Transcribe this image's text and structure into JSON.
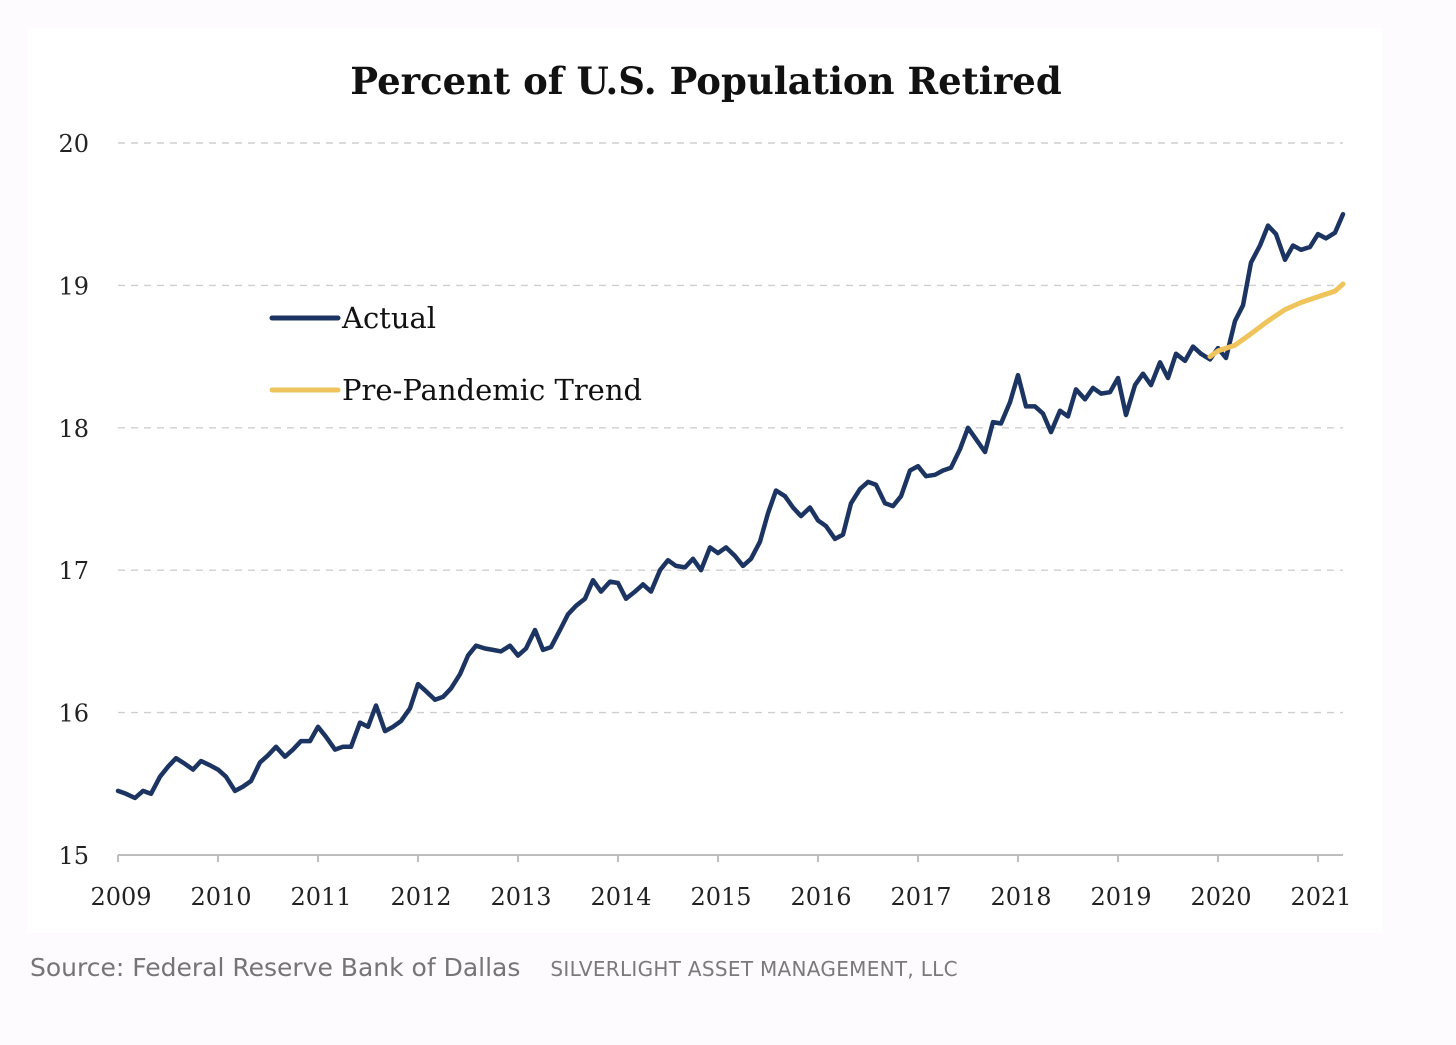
{
  "chart_data": {
    "type": "line",
    "title": "Percent of U.S. Population Retired",
    "xlabel": "",
    "ylabel": "",
    "xlim": [
      2009,
      2021.25
    ],
    "ylim": [
      15,
      20
    ],
    "yticks": [
      "15",
      "16",
      "17",
      "18",
      "19",
      "20"
    ],
    "xticks": [
      "2009",
      "2010",
      "2011",
      "2012",
      "2013",
      "2014",
      "2015",
      "2016",
      "2017",
      "2018",
      "2019",
      "2020",
      "2021"
    ],
    "grid": "horizontal dashed",
    "legend_position": "upper-left",
    "series": [
      {
        "name": "Actual",
        "color": "#1c3461",
        "points": [
          [
            2009.0,
            15.45
          ],
          [
            2009.08,
            15.43
          ],
          [
            2009.17,
            15.4
          ],
          [
            2009.25,
            15.45
          ],
          [
            2009.33,
            15.43
          ],
          [
            2009.42,
            15.55
          ],
          [
            2009.5,
            15.62
          ],
          [
            2009.58,
            15.68
          ],
          [
            2009.67,
            15.64
          ],
          [
            2009.75,
            15.6
          ],
          [
            2009.83,
            15.66
          ],
          [
            2009.92,
            15.63
          ],
          [
            2010.0,
            15.6
          ],
          [
            2010.08,
            15.55
          ],
          [
            2010.17,
            15.45
          ],
          [
            2010.25,
            15.48
          ],
          [
            2010.33,
            15.52
          ],
          [
            2010.42,
            15.65
          ],
          [
            2010.5,
            15.7
          ],
          [
            2010.58,
            15.76
          ],
          [
            2010.67,
            15.69
          ],
          [
            2010.75,
            15.74
          ],
          [
            2010.83,
            15.8
          ],
          [
            2010.92,
            15.8
          ],
          [
            2011.0,
            15.9
          ],
          [
            2011.08,
            15.83
          ],
          [
            2011.17,
            15.74
          ],
          [
            2011.25,
            15.76
          ],
          [
            2011.33,
            15.76
          ],
          [
            2011.42,
            15.93
          ],
          [
            2011.5,
            15.9
          ],
          [
            2011.58,
            16.05
          ],
          [
            2011.67,
            15.87
          ],
          [
            2011.75,
            15.9
          ],
          [
            2011.83,
            15.94
          ],
          [
            2011.92,
            16.03
          ],
          [
            2012.0,
            16.2
          ],
          [
            2012.08,
            16.15
          ],
          [
            2012.17,
            16.09
          ],
          [
            2012.25,
            16.11
          ],
          [
            2012.33,
            16.17
          ],
          [
            2012.42,
            16.27
          ],
          [
            2012.5,
            16.4
          ],
          [
            2012.58,
            16.47
          ],
          [
            2012.67,
            16.45
          ],
          [
            2012.75,
            16.44
          ],
          [
            2012.83,
            16.43
          ],
          [
            2012.92,
            16.47
          ],
          [
            2013.0,
            16.4
          ],
          [
            2013.08,
            16.45
          ],
          [
            2013.17,
            16.58
          ],
          [
            2013.25,
            16.44
          ],
          [
            2013.33,
            16.46
          ],
          [
            2013.42,
            16.58
          ],
          [
            2013.5,
            16.69
          ],
          [
            2013.58,
            16.75
          ],
          [
            2013.67,
            16.8
          ],
          [
            2013.75,
            16.93
          ],
          [
            2013.83,
            16.85
          ],
          [
            2013.92,
            16.92
          ],
          [
            2014.0,
            16.91
          ],
          [
            2014.08,
            16.8
          ],
          [
            2014.17,
            16.85
          ],
          [
            2014.25,
            16.9
          ],
          [
            2014.33,
            16.85
          ],
          [
            2014.42,
            17.0
          ],
          [
            2014.5,
            17.07
          ],
          [
            2014.58,
            17.03
          ],
          [
            2014.67,
            17.02
          ],
          [
            2014.75,
            17.08
          ],
          [
            2014.83,
            17.0
          ],
          [
            2014.92,
            17.16
          ],
          [
            2015.0,
            17.12
          ],
          [
            2015.08,
            17.16
          ],
          [
            2015.17,
            17.1
          ],
          [
            2015.25,
            17.03
          ],
          [
            2015.33,
            17.08
          ],
          [
            2015.42,
            17.2
          ],
          [
            2015.5,
            17.4
          ],
          [
            2015.58,
            17.56
          ],
          [
            2015.67,
            17.52
          ],
          [
            2015.75,
            17.44
          ],
          [
            2015.83,
            17.38
          ],
          [
            2015.92,
            17.44
          ],
          [
            2016.0,
            17.35
          ],
          [
            2016.08,
            17.31
          ],
          [
            2016.17,
            17.22
          ],
          [
            2016.25,
            17.25
          ],
          [
            2016.33,
            17.47
          ],
          [
            2016.42,
            17.57
          ],
          [
            2016.5,
            17.62
          ],
          [
            2016.58,
            17.6
          ],
          [
            2016.67,
            17.47
          ],
          [
            2016.75,
            17.45
          ],
          [
            2016.83,
            17.52
          ],
          [
            2016.92,
            17.7
          ],
          [
            2017.0,
            17.73
          ],
          [
            2017.08,
            17.66
          ],
          [
            2017.17,
            17.67
          ],
          [
            2017.25,
            17.7
          ],
          [
            2017.33,
            17.72
          ],
          [
            2017.42,
            17.85
          ],
          [
            2017.5,
            18.0
          ],
          [
            2017.58,
            17.92
          ],
          [
            2017.67,
            17.83
          ],
          [
            2017.75,
            18.04
          ],
          [
            2017.83,
            18.03
          ],
          [
            2017.92,
            18.18
          ],
          [
            2018.0,
            18.37
          ],
          [
            2018.08,
            18.15
          ],
          [
            2018.17,
            18.15
          ],
          [
            2018.25,
            18.1
          ],
          [
            2018.33,
            17.97
          ],
          [
            2018.42,
            18.12
          ],
          [
            2018.5,
            18.08
          ],
          [
            2018.58,
            18.27
          ],
          [
            2018.67,
            18.2
          ],
          [
            2018.75,
            18.28
          ],
          [
            2018.83,
            18.24
          ],
          [
            2018.92,
            18.25
          ],
          [
            2019.0,
            18.35
          ],
          [
            2019.08,
            18.09
          ],
          [
            2019.17,
            18.3
          ],
          [
            2019.25,
            18.38
          ],
          [
            2019.33,
            18.3
          ],
          [
            2019.42,
            18.46
          ],
          [
            2019.5,
            18.35
          ],
          [
            2019.58,
            18.52
          ],
          [
            2019.67,
            18.47
          ],
          [
            2019.75,
            18.57
          ],
          [
            2019.83,
            18.52
          ],
          [
            2019.92,
            18.48
          ],
          [
            2020.0,
            18.56
          ],
          [
            2020.08,
            18.49
          ],
          [
            2020.17,
            18.75
          ],
          [
            2020.25,
            18.86
          ],
          [
            2020.33,
            19.16
          ],
          [
            2020.42,
            19.28
          ],
          [
            2020.5,
            19.42
          ],
          [
            2020.58,
            19.36
          ],
          [
            2020.67,
            19.18
          ],
          [
            2020.75,
            19.28
          ],
          [
            2020.83,
            19.25
          ],
          [
            2020.92,
            19.27
          ],
          [
            2021.0,
            19.36
          ],
          [
            2021.08,
            19.33
          ],
          [
            2021.17,
            19.37
          ],
          [
            2021.25,
            19.5
          ]
        ]
      },
      {
        "name": "Pre-Pandemic Trend",
        "color": "#f0c45c",
        "points": [
          [
            2019.92,
            18.5
          ],
          [
            2020.0,
            18.54
          ],
          [
            2020.17,
            18.58
          ],
          [
            2020.33,
            18.66
          ],
          [
            2020.5,
            18.75
          ],
          [
            2020.67,
            18.83
          ],
          [
            2020.83,
            18.88
          ],
          [
            2021.0,
            18.92
          ],
          [
            2021.17,
            18.96
          ],
          [
            2021.25,
            19.01
          ]
        ]
      }
    ]
  },
  "caption": {
    "source": "Source: Federal Reserve Bank of Dallas",
    "credit": "SILVERLIGHT ASSET MANAGEMENT, LLC"
  }
}
